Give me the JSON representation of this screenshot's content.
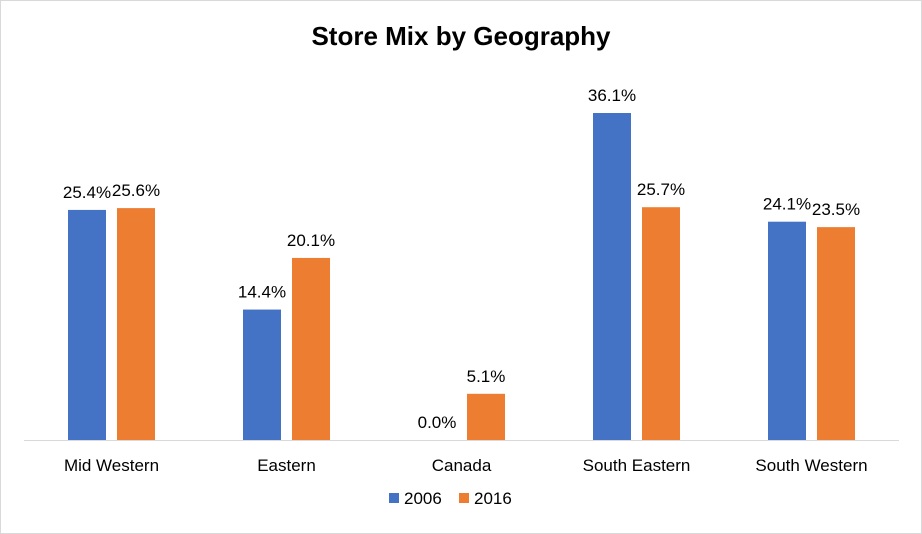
{
  "chart_data": {
    "type": "bar",
    "title": "Store Mix by Geography",
    "categories": [
      "Mid Western",
      "Eastern",
      "Canada",
      "South Eastern",
      "South Western"
    ],
    "series": [
      {
        "name": "2006",
        "color": "#4472c4",
        "values": [
          25.4,
          14.4,
          0.0,
          36.1,
          24.1
        ],
        "labels": [
          "25.4%",
          "14.4%",
          "0.0%",
          "36.1%",
          "24.1%"
        ]
      },
      {
        "name": "2016",
        "color": "#ed7d31",
        "values": [
          25.6,
          20.1,
          5.1,
          25.7,
          23.5
        ],
        "labels": [
          "25.6%",
          "20.1%",
          "5.1%",
          "25.7%",
          "23.5%"
        ]
      }
    ],
    "ylim": [
      0,
      36.1
    ],
    "grid": false,
    "legend": "bottom",
    "axis_color": "#d9d9d9"
  }
}
